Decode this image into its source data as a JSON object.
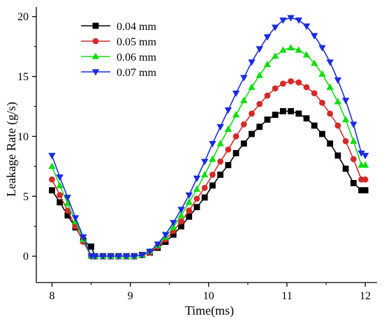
{
  "chart_data": {
    "type": "line",
    "xlabel": "Time(ms)",
    "ylabel": "Leakage Rate (g/s)",
    "xlim": [
      7.8,
      12.15
    ],
    "ylim": [
      -2.2,
      20.8
    ],
    "xticks": [
      8,
      9,
      10,
      11,
      12
    ],
    "yticks": [
      0,
      5,
      10,
      15,
      20
    ],
    "grid": false,
    "legend_position": "top-left",
    "x": [
      8.0,
      8.1,
      8.2,
      8.3,
      8.4,
      8.5,
      8.55,
      8.65,
      8.75,
      8.85,
      8.95,
      9.05,
      9.15,
      9.25,
      9.35,
      9.45,
      9.55,
      9.65,
      9.75,
      9.85,
      9.95,
      10.05,
      10.15,
      10.25,
      10.35,
      10.45,
      10.55,
      10.65,
      10.75,
      10.85,
      10.95,
      11.05,
      11.15,
      11.25,
      11.35,
      11.45,
      11.55,
      11.65,
      11.75,
      11.85,
      11.95,
      12.0
    ],
    "series": [
      {
        "name": "0.04 mm",
        "color": "#000000",
        "marker": "square",
        "values": [
          5.5,
          4.5,
          3.4,
          2.4,
          1.3,
          0.8,
          0.0,
          0.0,
          0.0,
          0.0,
          0.0,
          0.0,
          0.1,
          0.3,
          0.7,
          1.2,
          1.8,
          2.5,
          3.3,
          4.1,
          4.9,
          5.9,
          6.8,
          7.6,
          8.6,
          9.4,
          10.2,
          10.8,
          11.4,
          11.8,
          12.1,
          12.1,
          11.9,
          11.5,
          10.9,
          10.2,
          9.4,
          8.4,
          7.3,
          6.1,
          5.5,
          5.5
        ]
      },
      {
        "name": "0.05 mm",
        "color": "#d42a2a",
        "marker": "circle",
        "values": [
          6.4,
          5.1,
          3.8,
          2.5,
          1.2,
          0.0,
          0.0,
          0.0,
          0.0,
          0.0,
          0.0,
          0.0,
          0.1,
          0.3,
          0.8,
          1.4,
          2.1,
          2.9,
          3.8,
          4.8,
          5.7,
          6.8,
          7.9,
          8.9,
          10.0,
          11.0,
          11.9,
          12.7,
          13.4,
          14.0,
          14.4,
          14.6,
          14.5,
          14.1,
          13.6,
          12.8,
          11.9,
          10.9,
          9.6,
          8.1,
          6.4,
          6.4
        ]
      },
      {
        "name": "0.06 mm",
        "color": "#11dd11",
        "marker": "triangle-up",
        "values": [
          7.5,
          5.9,
          4.4,
          2.9,
          1.4,
          0.0,
          0.0,
          0.0,
          0.0,
          0.0,
          0.0,
          0.0,
          0.1,
          0.4,
          0.9,
          1.6,
          2.4,
          3.4,
          4.5,
          5.6,
          6.8,
          8.1,
          9.4,
          10.6,
          11.8,
          13.0,
          14.1,
          15.1,
          16.0,
          16.7,
          17.2,
          17.4,
          17.2,
          16.8,
          16.1,
          15.2,
          14.1,
          12.9,
          11.4,
          9.6,
          7.6,
          7.6
        ]
      },
      {
        "name": "0.07 mm",
        "color": "#1a2be0",
        "marker": "triangle-down",
        "values": [
          8.4,
          6.6,
          4.9,
          3.2,
          1.6,
          0.0,
          0.0,
          0.0,
          0.0,
          0.0,
          0.0,
          0.0,
          0.1,
          0.4,
          1.0,
          1.8,
          2.8,
          3.9,
          5.1,
          6.5,
          7.9,
          9.4,
          10.8,
          12.2,
          13.6,
          14.9,
          16.2,
          17.3,
          18.3,
          19.1,
          19.7,
          19.9,
          19.7,
          19.2,
          18.4,
          17.4,
          16.2,
          14.7,
          13.0,
          11.0,
          8.6,
          8.4
        ]
      }
    ]
  }
}
